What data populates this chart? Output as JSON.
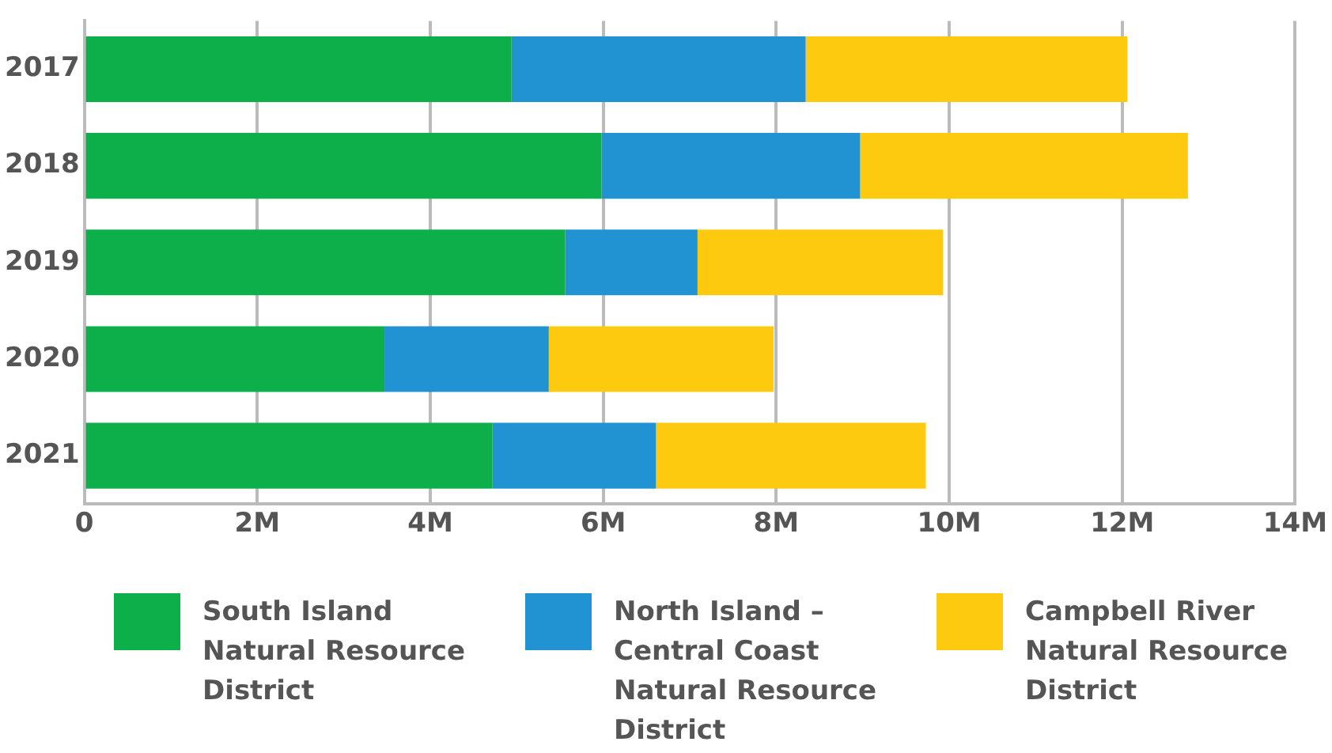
{
  "chart_data": {
    "type": "bar",
    "orientation": "horizontal",
    "stacked": true,
    "categories": [
      "2017",
      "2018",
      "2019",
      "2020",
      "2021"
    ],
    "series": [
      {
        "name": "South Island Natural Resource District",
        "color": "#0daf4b",
        "values": [
          4940000,
          5980000,
          5560000,
          3470000,
          4720000
        ]
      },
      {
        "name": "North Island – Central Coast Natural Resource District",
        "color": "#2193d3",
        "values": [
          3400000,
          2990000,
          1530000,
          1900000,
          1890000
        ]
      },
      {
        "name": "Campbell River Natural Resource District",
        "color": "#fdca10",
        "values": [
          3720000,
          3790000,
          2840000,
          2600000,
          3120000
        ]
      }
    ],
    "xlim": [
      0,
      14000000
    ],
    "xticks": [
      0,
      {
        "value": 2000000,
        "label": "2M"
      },
      {
        "value": 4000000,
        "label": "4M"
      },
      {
        "value": 6000000,
        "label": "6M"
      },
      {
        "value": 8000000,
        "label": "8M"
      },
      {
        "value": 10000000,
        "label": "10M"
      },
      {
        "value": 12000000,
        "label": "12M"
      },
      {
        "value": 14000000,
        "label": "14M"
      }
    ],
    "grid": "x",
    "legend": "bottom"
  }
}
